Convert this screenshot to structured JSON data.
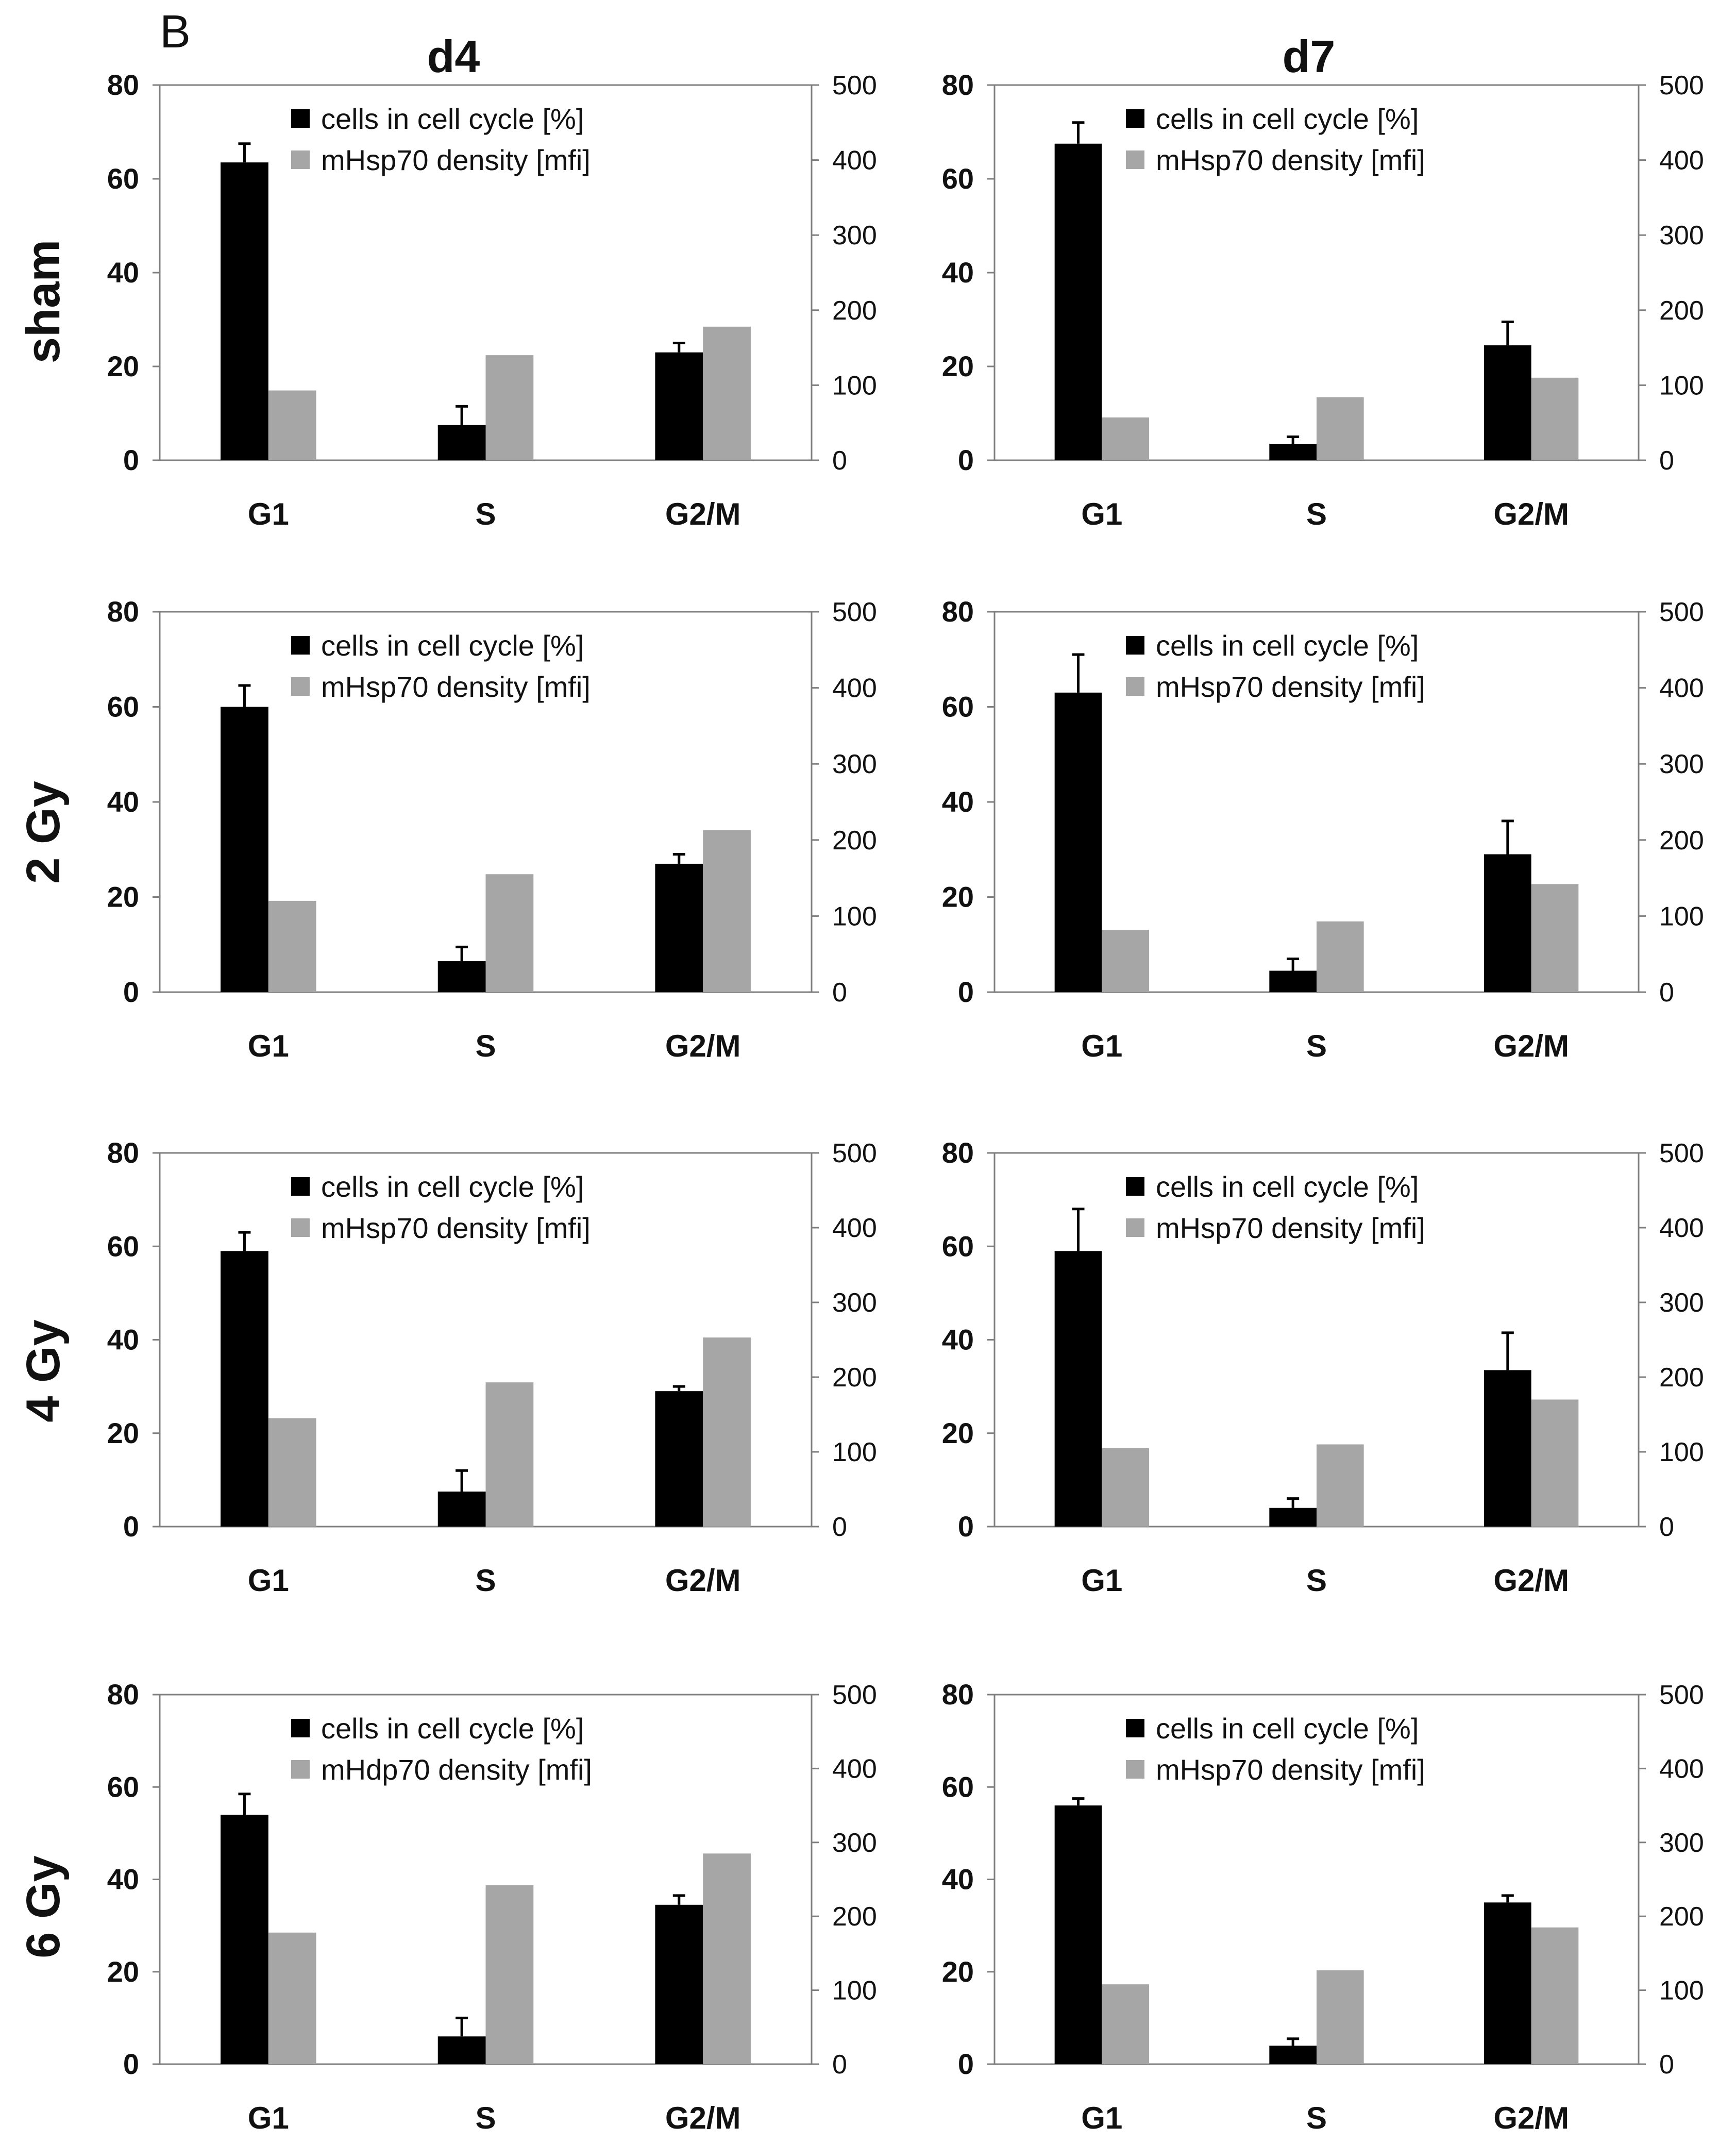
{
  "figure": {
    "panel_label": "B",
    "column_headers": [
      "d4",
      "d7"
    ],
    "row_headers": [
      "sham",
      "2 Gy",
      "4 Gy",
      "6 Gy"
    ],
    "colors": {
      "cells": "#000000",
      "mhsp": "#a6a6a6",
      "axis": "#7f7f7f",
      "text": "#111111"
    }
  },
  "chart_data": [
    {
      "type": "bar",
      "title": "sham d4",
      "categories": [
        "G1",
        "S",
        "G2/M"
      ],
      "series": [
        {
          "name": "cells in cell cycle [%]",
          "axis": "left",
          "values": [
            63.5,
            7.5,
            23
          ],
          "errors": [
            4,
            4,
            2
          ]
        },
        {
          "name": "mHsp70 density [mfi]",
          "axis": "right",
          "values": [
            93,
            140,
            178
          ]
        }
      ],
      "ylim_left": [
        0,
        80
      ],
      "yticks_left": [
        "0",
        "20",
        "40",
        "60",
        "80"
      ],
      "ylim_right": [
        0,
        500
      ],
      "yticks_right": [
        "0",
        "100",
        "200",
        "300",
        "400",
        "500"
      ]
    },
    {
      "type": "bar",
      "title": "sham d7",
      "categories": [
        "G1",
        "S",
        "G2/M"
      ],
      "series": [
        {
          "name": "cells in cell cycle [%]",
          "axis": "left",
          "values": [
            67.5,
            3.5,
            24.5
          ],
          "errors": [
            4.5,
            1.5,
            5
          ]
        },
        {
          "name": "mHsp70 density [mfi]",
          "axis": "right",
          "values": [
            57,
            84,
            110
          ]
        }
      ],
      "ylim_left": [
        0,
        80
      ],
      "yticks_left": [
        "0",
        "20",
        "40",
        "60",
        "80"
      ],
      "ylim_right": [
        0,
        500
      ],
      "yticks_right": [
        "0",
        "100",
        "200",
        "300",
        "400",
        "500"
      ]
    },
    {
      "type": "bar",
      "title": "2 Gy d4",
      "categories": [
        "G1",
        "S",
        "G2/M"
      ],
      "series": [
        {
          "name": "cells in cell cycle [%]",
          "axis": "left",
          "values": [
            60,
            6.5,
            27
          ],
          "errors": [
            4.5,
            3,
            2
          ]
        },
        {
          "name": "mHsp70 density [mfi]",
          "axis": "right",
          "values": [
            120,
            155,
            213
          ]
        }
      ],
      "ylim_left": [
        0,
        80
      ],
      "yticks_left": [
        "0",
        "20",
        "40",
        "60",
        "80"
      ],
      "ylim_right": [
        0,
        500
      ],
      "yticks_right": [
        "0",
        "100",
        "200",
        "300",
        "400",
        "500"
      ]
    },
    {
      "type": "bar",
      "title": "2 Gy d7",
      "categories": [
        "G1",
        "S",
        "G2/M"
      ],
      "series": [
        {
          "name": "cells in cell cycle [%]",
          "axis": "left",
          "values": [
            63,
            4.5,
            29
          ],
          "errors": [
            8,
            2.5,
            7
          ]
        },
        {
          "name": "mHsp70 density [mfi]",
          "axis": "right",
          "values": [
            82,
            93,
            142
          ]
        }
      ],
      "ylim_left": [
        0,
        80
      ],
      "yticks_left": [
        "0",
        "20",
        "40",
        "60",
        "80"
      ],
      "ylim_right": [
        0,
        500
      ],
      "yticks_right": [
        "0",
        "100",
        "200",
        "300",
        "400",
        "500"
      ]
    },
    {
      "type": "bar",
      "title": "4 Gy d4",
      "categories": [
        "G1",
        "S",
        "G2/M"
      ],
      "series": [
        {
          "name": "cells in cell cycle [%]",
          "axis": "left",
          "values": [
            59,
            7.5,
            29
          ],
          "errors": [
            4,
            4.5,
            1
          ]
        },
        {
          "name": "mHsp70 density [mfi]",
          "axis": "right",
          "values": [
            145,
            193,
            253
          ]
        }
      ],
      "ylim_left": [
        0,
        80
      ],
      "yticks_left": [
        "0",
        "20",
        "40",
        "60",
        "80"
      ],
      "ylim_right": [
        0,
        500
      ],
      "yticks_right": [
        "0",
        "100",
        "200",
        "300",
        "400",
        "500"
      ]
    },
    {
      "type": "bar",
      "title": "4 Gy d7",
      "categories": [
        "G1",
        "S",
        "G2/M"
      ],
      "series": [
        {
          "name": "cells in cell cycle [%]",
          "axis": "left",
          "values": [
            59,
            4,
            33.5
          ],
          "errors": [
            9,
            2,
            8
          ]
        },
        {
          "name": "mHsp70 density [mfi]",
          "axis": "right",
          "values": [
            105,
            110,
            170
          ]
        }
      ],
      "ylim_left": [
        0,
        80
      ],
      "yticks_left": [
        "0",
        "20",
        "40",
        "60",
        "80"
      ],
      "ylim_right": [
        0,
        500
      ],
      "yticks_right": [
        "0",
        "100",
        "200",
        "300",
        "400",
        "500"
      ]
    },
    {
      "type": "bar",
      "title": "6 Gy d4",
      "categories": [
        "G1",
        "S",
        "G2/M"
      ],
      "series": [
        {
          "name": "cells in cell cycle [%]",
          "axis": "left",
          "values": [
            54,
            6,
            34.5
          ],
          "errors": [
            4.5,
            4,
            2
          ]
        },
        {
          "name": "mHdp70 density [mfi]",
          "axis": "right",
          "values": [
            178,
            242,
            285
          ]
        }
      ],
      "ylim_left": [
        0,
        80
      ],
      "yticks_left": [
        "0",
        "20",
        "40",
        "60",
        "80"
      ],
      "ylim_right": [
        0,
        500
      ],
      "yticks_right": [
        "0",
        "100",
        "200",
        "300",
        "400",
        "500"
      ]
    },
    {
      "type": "bar",
      "title": "6 Gy d7",
      "categories": [
        "G1",
        "S",
        "G2/M"
      ],
      "series": [
        {
          "name": "cells in cell cycle [%]",
          "axis": "left",
          "values": [
            56,
            4,
            35
          ],
          "errors": [
            1.5,
            1.5,
            1.5
          ]
        },
        {
          "name": "mHsp70 density [mfi]",
          "axis": "right",
          "values": [
            108,
            127,
            185
          ]
        }
      ],
      "ylim_left": [
        0,
        80
      ],
      "yticks_left": [
        "0",
        "20",
        "40",
        "60",
        "80"
      ],
      "ylim_right": [
        0,
        500
      ],
      "yticks_right": [
        "0",
        "100",
        "200",
        "300",
        "400",
        "500"
      ]
    }
  ]
}
